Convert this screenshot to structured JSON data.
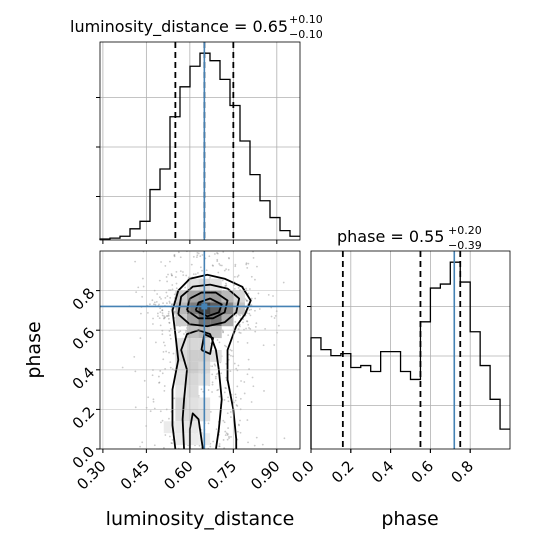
{
  "chart_data": {
    "type": "corner",
    "parameters": [
      {
        "name": "luminosity_distance",
        "title_prefix": "luminosity_distance = 0.65",
        "err_plus": "+0.10",
        "err_minus": "−0.10",
        "truth": 0.65,
        "median": 0.65,
        "quantiles": [
          0.55,
          0.65,
          0.75
        ],
        "range": [
          0.29,
          0.98
        ],
        "ticks": [
          0.3,
          0.45,
          0.6,
          0.75,
          0.9
        ],
        "tick_labels": [
          "0.30",
          "0.45",
          "0.60",
          "0.75",
          "0.90"
        ],
        "hist_bin_edges": [
          0.29,
          0.3245,
          0.359,
          0.3935,
          0.428,
          0.4625,
          0.497,
          0.5315,
          0.566,
          0.6005,
          0.635,
          0.6695,
          0.704,
          0.7385,
          0.773,
          0.8075,
          0.842,
          0.8765,
          0.911,
          0.9455,
          0.98
        ],
        "hist_counts": [
          0.5,
          1,
          2,
          6,
          10,
          27,
          38,
          66,
          82,
          93,
          100,
          96,
          86,
          72,
          53,
          35,
          21,
          12,
          5,
          2
        ]
      },
      {
        "name": "phase",
        "title_prefix": "phase = 0.55",
        "err_plus": "+0.20",
        "err_minus": "−0.39",
        "truth": 0.72,
        "median": 0.55,
        "quantiles": [
          0.16,
          0.55,
          0.75
        ],
        "range": [
          0.0,
          1.0
        ],
        "ticks": [
          0.0,
          0.2,
          0.4,
          0.6,
          0.8
        ],
        "tick_labels": [
          "0.0",
          "0.2",
          "0.4",
          "0.6",
          "0.8"
        ],
        "hist_bin_edges": [
          0.0,
          0.05,
          0.1,
          0.15,
          0.2,
          0.25,
          0.3,
          0.35,
          0.4,
          0.45,
          0.5,
          0.55,
          0.6,
          0.65,
          0.7,
          0.75,
          0.8,
          0.85,
          0.9,
          0.95,
          1.0
        ],
        "hist_counts": [
          56,
          50,
          47,
          48,
          41,
          42,
          39,
          49,
          49,
          39,
          35,
          64,
          81,
          83,
          94,
          84,
          59,
          42,
          25,
          10
        ]
      }
    ],
    "joint": {
      "x": "luminosity_distance",
      "y": "phase",
      "cells": [
        {
          "x": 0.67,
          "y": 0.71,
          "d": 1.0
        },
        {
          "x": 0.65,
          "y": 0.71,
          "d": 0.95
        },
        {
          "x": 0.69,
          "y": 0.71,
          "d": 0.8
        },
        {
          "x": 0.65,
          "y": 0.65,
          "d": 0.7
        },
        {
          "x": 0.69,
          "y": 0.65,
          "d": 0.7
        },
        {
          "x": 0.61,
          "y": 0.71,
          "d": 0.65
        },
        {
          "x": 0.73,
          "y": 0.71,
          "d": 0.6
        },
        {
          "x": 0.61,
          "y": 0.77,
          "d": 0.45
        },
        {
          "x": 0.69,
          "y": 0.77,
          "d": 0.5
        },
        {
          "x": 0.65,
          "y": 0.77,
          "d": 0.5
        },
        {
          "x": 0.73,
          "y": 0.77,
          "d": 0.35
        },
        {
          "x": 0.57,
          "y": 0.71,
          "d": 0.35
        },
        {
          "x": 0.61,
          "y": 0.65,
          "d": 0.45
        },
        {
          "x": 0.73,
          "y": 0.65,
          "d": 0.4
        },
        {
          "x": 0.57,
          "y": 0.65,
          "d": 0.25
        },
        {
          "x": 0.77,
          "y": 0.71,
          "d": 0.3
        },
        {
          "x": 0.57,
          "y": 0.77,
          "d": 0.25
        },
        {
          "x": 0.77,
          "y": 0.77,
          "d": 0.2
        },
        {
          "x": 0.65,
          "y": 0.83,
          "d": 0.2
        },
        {
          "x": 0.61,
          "y": 0.83,
          "d": 0.15
        },
        {
          "x": 0.69,
          "y": 0.83,
          "d": 0.15
        },
        {
          "x": 0.61,
          "y": 0.59,
          "d": 0.3
        },
        {
          "x": 0.65,
          "y": 0.59,
          "d": 0.35
        },
        {
          "x": 0.69,
          "y": 0.59,
          "d": 0.3
        },
        {
          "x": 0.57,
          "y": 0.53,
          "d": 0.15
        },
        {
          "x": 0.61,
          "y": 0.53,
          "d": 0.2
        },
        {
          "x": 0.65,
          "y": 0.53,
          "d": 0.2
        },
        {
          "x": 0.61,
          "y": 0.47,
          "d": 0.25
        },
        {
          "x": 0.57,
          "y": 0.47,
          "d": 0.2
        },
        {
          "x": 0.65,
          "y": 0.47,
          "d": 0.25
        },
        {
          "x": 0.69,
          "y": 0.47,
          "d": 0.15
        },
        {
          "x": 0.61,
          "y": 0.41,
          "d": 0.25
        },
        {
          "x": 0.65,
          "y": 0.41,
          "d": 0.2
        },
        {
          "x": 0.57,
          "y": 0.41,
          "d": 0.15
        },
        {
          "x": 0.61,
          "y": 0.35,
          "d": 0.2
        },
        {
          "x": 0.65,
          "y": 0.35,
          "d": 0.15
        },
        {
          "x": 0.57,
          "y": 0.35,
          "d": 0.15
        },
        {
          "x": 0.61,
          "y": 0.29,
          "d": 0.18
        },
        {
          "x": 0.57,
          "y": 0.29,
          "d": 0.12
        },
        {
          "x": 0.57,
          "y": 0.23,
          "d": 0.2
        },
        {
          "x": 0.61,
          "y": 0.23,
          "d": 0.15
        },
        {
          "x": 0.65,
          "y": 0.23,
          "d": 0.12
        },
        {
          "x": 0.57,
          "y": 0.17,
          "d": 0.18
        },
        {
          "x": 0.61,
          "y": 0.17,
          "d": 0.18
        },
        {
          "x": 0.65,
          "y": 0.17,
          "d": 0.15
        },
        {
          "x": 0.57,
          "y": 0.11,
          "d": 0.12
        },
        {
          "x": 0.61,
          "y": 0.11,
          "d": 0.12
        },
        {
          "x": 0.53,
          "y": 0.11,
          "d": 0.1
        },
        {
          "x": 0.57,
          "y": 0.05,
          "d": 0.1
        },
        {
          "x": 0.61,
          "y": 0.05,
          "d": 0.1
        },
        {
          "x": 0.65,
          "y": 0.05,
          "d": 0.08
        }
      ],
      "contours": [
        [
          [
            0.55,
            0.0
          ],
          [
            0.54,
            0.12
          ],
          [
            0.54,
            0.3
          ],
          [
            0.56,
            0.45
          ],
          [
            0.55,
            0.58
          ],
          [
            0.54,
            0.7
          ],
          [
            0.56,
            0.8
          ],
          [
            0.6,
            0.86
          ],
          [
            0.66,
            0.88
          ],
          [
            0.72,
            0.86
          ],
          [
            0.78,
            0.82
          ],
          [
            0.81,
            0.75
          ],
          [
            0.79,
            0.68
          ],
          [
            0.76,
            0.62
          ],
          [
            0.73,
            0.5
          ],
          [
            0.73,
            0.35
          ],
          [
            0.75,
            0.2
          ],
          [
            0.76,
            0.05
          ],
          [
            0.76,
            0.0
          ]
        ],
        [
          [
            0.56,
            0.68
          ],
          [
            0.57,
            0.77
          ],
          [
            0.61,
            0.82
          ],
          [
            0.67,
            0.83
          ],
          [
            0.73,
            0.81
          ],
          [
            0.77,
            0.76
          ],
          [
            0.76,
            0.69
          ],
          [
            0.72,
            0.64
          ],
          [
            0.66,
            0.62
          ],
          [
            0.6,
            0.63
          ],
          [
            0.56,
            0.68
          ]
        ],
        [
          [
            0.59,
            0.7
          ],
          [
            0.6,
            0.76
          ],
          [
            0.64,
            0.79
          ],
          [
            0.69,
            0.79
          ],
          [
            0.73,
            0.75
          ],
          [
            0.72,
            0.69
          ],
          [
            0.68,
            0.66
          ],
          [
            0.63,
            0.66
          ],
          [
            0.59,
            0.7
          ]
        ],
        [
          [
            0.62,
            0.7
          ],
          [
            0.63,
            0.74
          ],
          [
            0.67,
            0.76
          ],
          [
            0.71,
            0.73
          ],
          [
            0.7,
            0.69
          ],
          [
            0.66,
            0.67
          ],
          [
            0.62,
            0.7
          ]
        ],
        [
          [
            0.58,
            0.0
          ],
          [
            0.575,
            0.15
          ],
          [
            0.58,
            0.25
          ],
          [
            0.59,
            0.4
          ],
          [
            0.57,
            0.5
          ],
          [
            0.59,
            0.58
          ],
          [
            0.63,
            0.6
          ],
          [
            0.67,
            0.58
          ],
          [
            0.69,
            0.5
          ],
          [
            0.7,
            0.4
          ],
          [
            0.71,
            0.25
          ],
          [
            0.7,
            0.1
          ],
          [
            0.69,
            0.0
          ]
        ],
        [
          [
            0.6,
            0.0
          ],
          [
            0.6,
            0.1
          ],
          [
            0.61,
            0.18
          ],
          [
            0.63,
            0.15
          ],
          [
            0.64,
            0.05
          ],
          [
            0.645,
            0.0
          ]
        ],
        [
          [
            0.64,
            0.5
          ],
          [
            0.65,
            0.58
          ],
          [
            0.68,
            0.56
          ],
          [
            0.67,
            0.48
          ],
          [
            0.64,
            0.5
          ]
        ]
      ],
      "truth_point": {
        "x": 0.65,
        "y": 0.72
      }
    },
    "xlabels": [
      "luminosity_distance",
      "phase"
    ],
    "ylabels": [
      "phase"
    ],
    "truth_color": "#4682b4",
    "grid": true
  }
}
